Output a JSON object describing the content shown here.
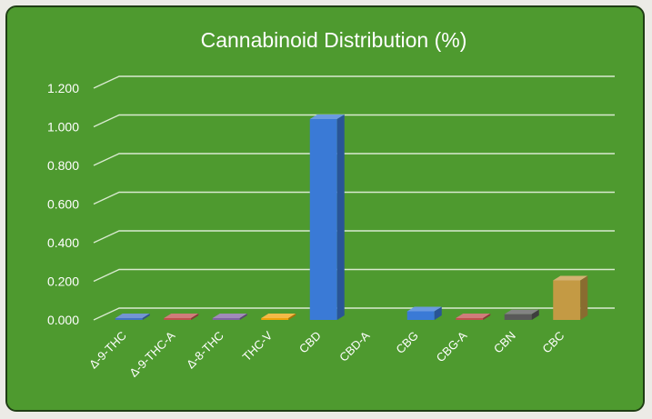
{
  "chart_data": {
    "type": "bar",
    "title": "Cannabinoid Distribution (%)",
    "xlabel": "",
    "ylabel": "",
    "categories": [
      "Δ-9-THC",
      "Δ-9-THC-A",
      "Δ-8-THC",
      "THC-V",
      "CBD",
      "CBD-A",
      "CBG",
      "CBG-A",
      "CBN",
      "CBC"
    ],
    "values": [
      0.004,
      0.008,
      0.006,
      0.008,
      1.04,
      0.0,
      0.045,
      0.005,
      0.03,
      0.205
    ],
    "ylim": [
      0,
      1.2
    ],
    "yticks": [
      "0.000",
      "0.200",
      "0.400",
      "0.600",
      "0.800",
      "1.000",
      "1.200"
    ],
    "grid": true,
    "legend": "none",
    "three_d": true,
    "bar_colors": [
      "#4472c4",
      "#c0504d",
      "#8064a2",
      "#f0a30a",
      "#3a7ad6",
      "#3a7ad6",
      "#3a7ad6",
      "#c0504d",
      "#595959",
      "#c49a44"
    ],
    "background_color": "#4e9a2f",
    "text_color": "#ffffff"
  }
}
